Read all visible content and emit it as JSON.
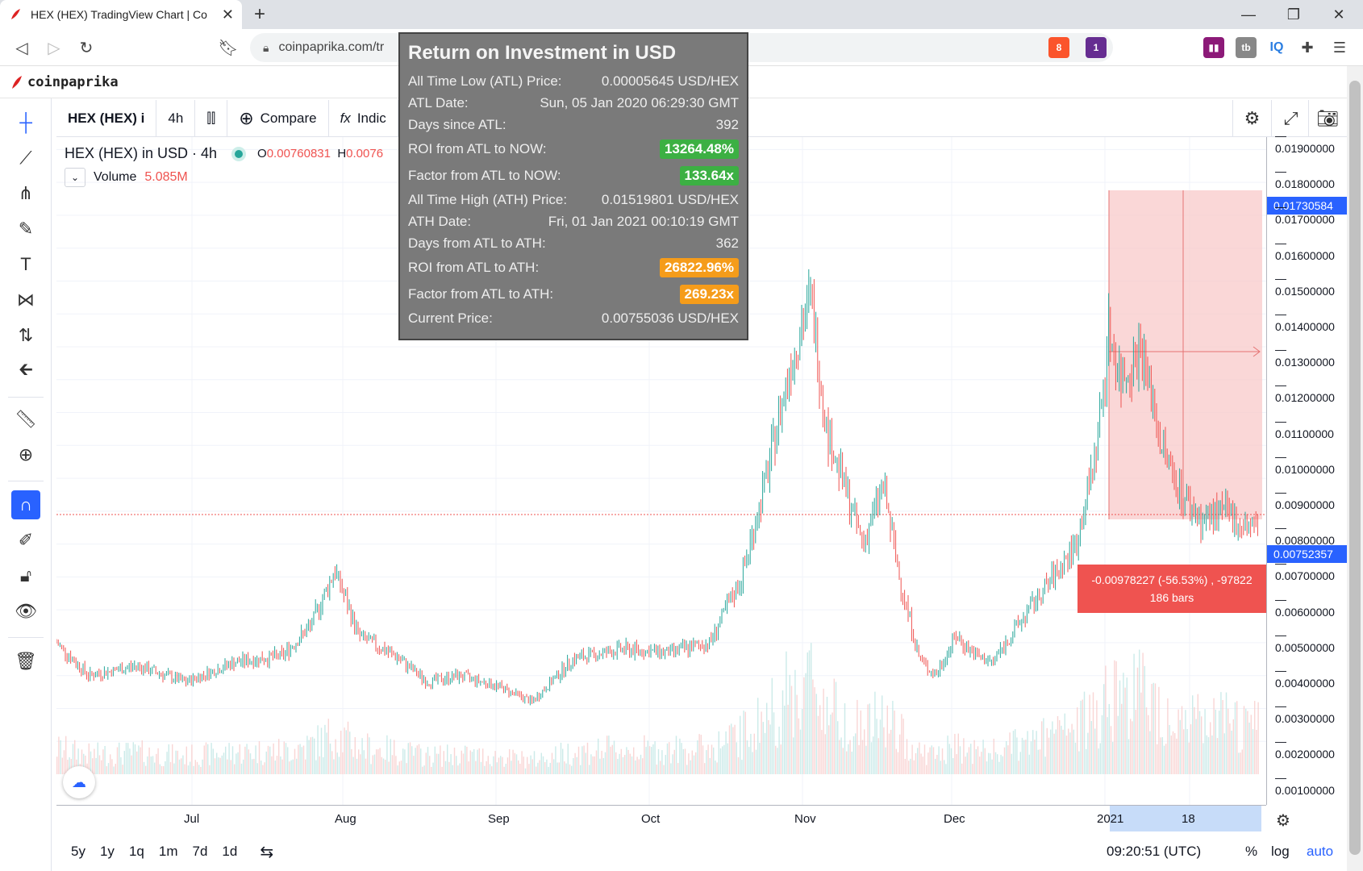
{
  "browser": {
    "tab_title": "HEX (HEX) TradingView Chart | Co",
    "url": "coinpaprika.com/tr",
    "brave_count": "8",
    "alert_count": "1"
  },
  "site": {
    "brand": "coinpaprika"
  },
  "toolbar": {
    "symbol": "HEX (HEX) i",
    "interval": "4h",
    "compare": "Compare",
    "indicators": "Indic"
  },
  "legend": {
    "title": "HEX (HEX) in USD · 4h",
    "open_label": "O",
    "open_value": "0.00760831",
    "high_label": "H",
    "high_value": "0.0076",
    "volume_label": "Volume",
    "volume_value": "5.085M"
  },
  "roi": {
    "title": "Return on Investment in USD",
    "rows": [
      {
        "label": "All Time Low (ATL) Price:",
        "value": "0.00005645 USD/HEX"
      },
      {
        "label": "ATL Date:",
        "value": "Sun, 05 Jan 2020 06:29:30 GMT"
      },
      {
        "label": "Days since ATL:",
        "value": "392"
      },
      {
        "label": "ROI from ATL to NOW:",
        "value": "13264.48%"
      },
      {
        "label": "Factor from ATL to NOW:",
        "value": "133.64x"
      },
      {
        "label": "All Time High (ATH) Price:",
        "value": "0.01519801 USD/HEX"
      },
      {
        "label": "ATH Date:",
        "value": "Fri, 01 Jan 2021 00:10:19 GMT"
      },
      {
        "label": "Days from ATL to ATH:",
        "value": "362"
      },
      {
        "label": "ROI from ATL to ATH:",
        "value": "26822.96%"
      },
      {
        "label": "Factor from ATL to ATH:",
        "value": "269.23x"
      },
      {
        "label": "Current Price:",
        "value": "0.00755036 USD/HEX"
      }
    ]
  },
  "price_axis": {
    "ticks": [
      "0.01900000",
      "0.01800000",
      "0.01700000",
      "0.01600000",
      "0.01500000",
      "0.01400000",
      "0.01300000",
      "0.01200000",
      "0.01100000",
      "0.01000000",
      "0.00900000",
      "0.00800000",
      "0.00700000",
      "0.00600000",
      "0.00500000",
      "0.00400000",
      "0.00300000",
      "0.00200000",
      "0.00100000"
    ],
    "badge_high": "0.01730584",
    "badge_current": "0.00752357",
    "badge_high_color": "#2962ff",
    "badge_current_color": "#2962ff"
  },
  "time_axis": {
    "labels": [
      "Jul",
      "Aug",
      "Sep",
      "Oct",
      "Nov",
      "Dec",
      "2021",
      "18"
    ]
  },
  "measure": {
    "line1": "-0.00978227 (-56.53%) , -97822",
    "line2": "186 bars"
  },
  "bottom": {
    "ranges": [
      "5y",
      "1y",
      "1q",
      "1m",
      "7d",
      "1d"
    ],
    "time": "09:20:51 (UTC)",
    "percent": "%",
    "log": "log",
    "auto": "auto"
  },
  "chart_data": {
    "type": "line",
    "x": [
      "Jul",
      "Aug",
      "Sep",
      "Oct",
      "Nov",
      "Dec",
      "2021",
      "18"
    ],
    "values": [
      0.0035,
      0.0055,
      0.0028,
      0.0038,
      0.0145,
      0.0035,
      0.012,
      0.008
    ],
    "ylim": [
      0.0,
      0.0195
    ]
  }
}
